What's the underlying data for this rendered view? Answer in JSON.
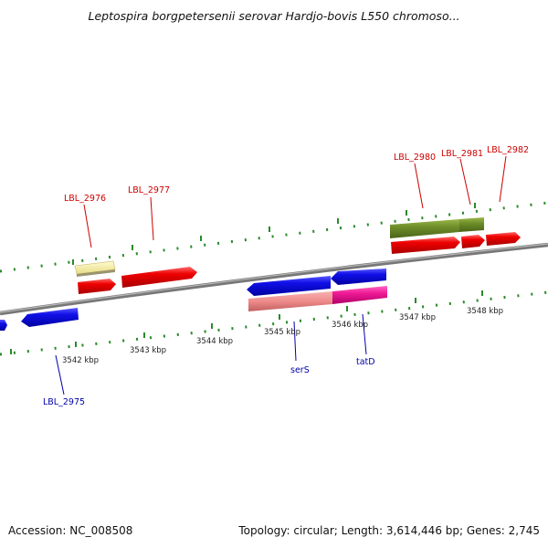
{
  "header": {
    "title": "Leptospira borgpetersenii serovar Hardjo-bovis L550 chromoso..."
  },
  "footer": {
    "accession": "Accession: NC_008508",
    "summary": "Topology: circular; Length: 3,614,446 bp; Genes: 2,745"
  },
  "colors": {
    "red_label": "#cc0000",
    "blue_label": "#0000aa",
    "frame_dots": "#2a8a2a",
    "backbone": "#888888"
  },
  "genes": {
    "LBL_2975": "LBL_2975",
    "LBL_2976": "LBL_2976",
    "LBL_2977": "LBL_2977",
    "serS": "serS",
    "tatD": "tatD",
    "LBL_2980": "LBL_2980",
    "LBL_2981": "LBL_2981",
    "LBL_2982": "LBL_2982"
  },
  "scale": {
    "k3542": "3542 kbp",
    "k3543": "3543 kbp",
    "k3544": "3544 kbp",
    "k3545": "3545 kbp",
    "k3546": "3546 kbp",
    "k3547": "3547 kbp",
    "k3548": "3548 kbp"
  }
}
